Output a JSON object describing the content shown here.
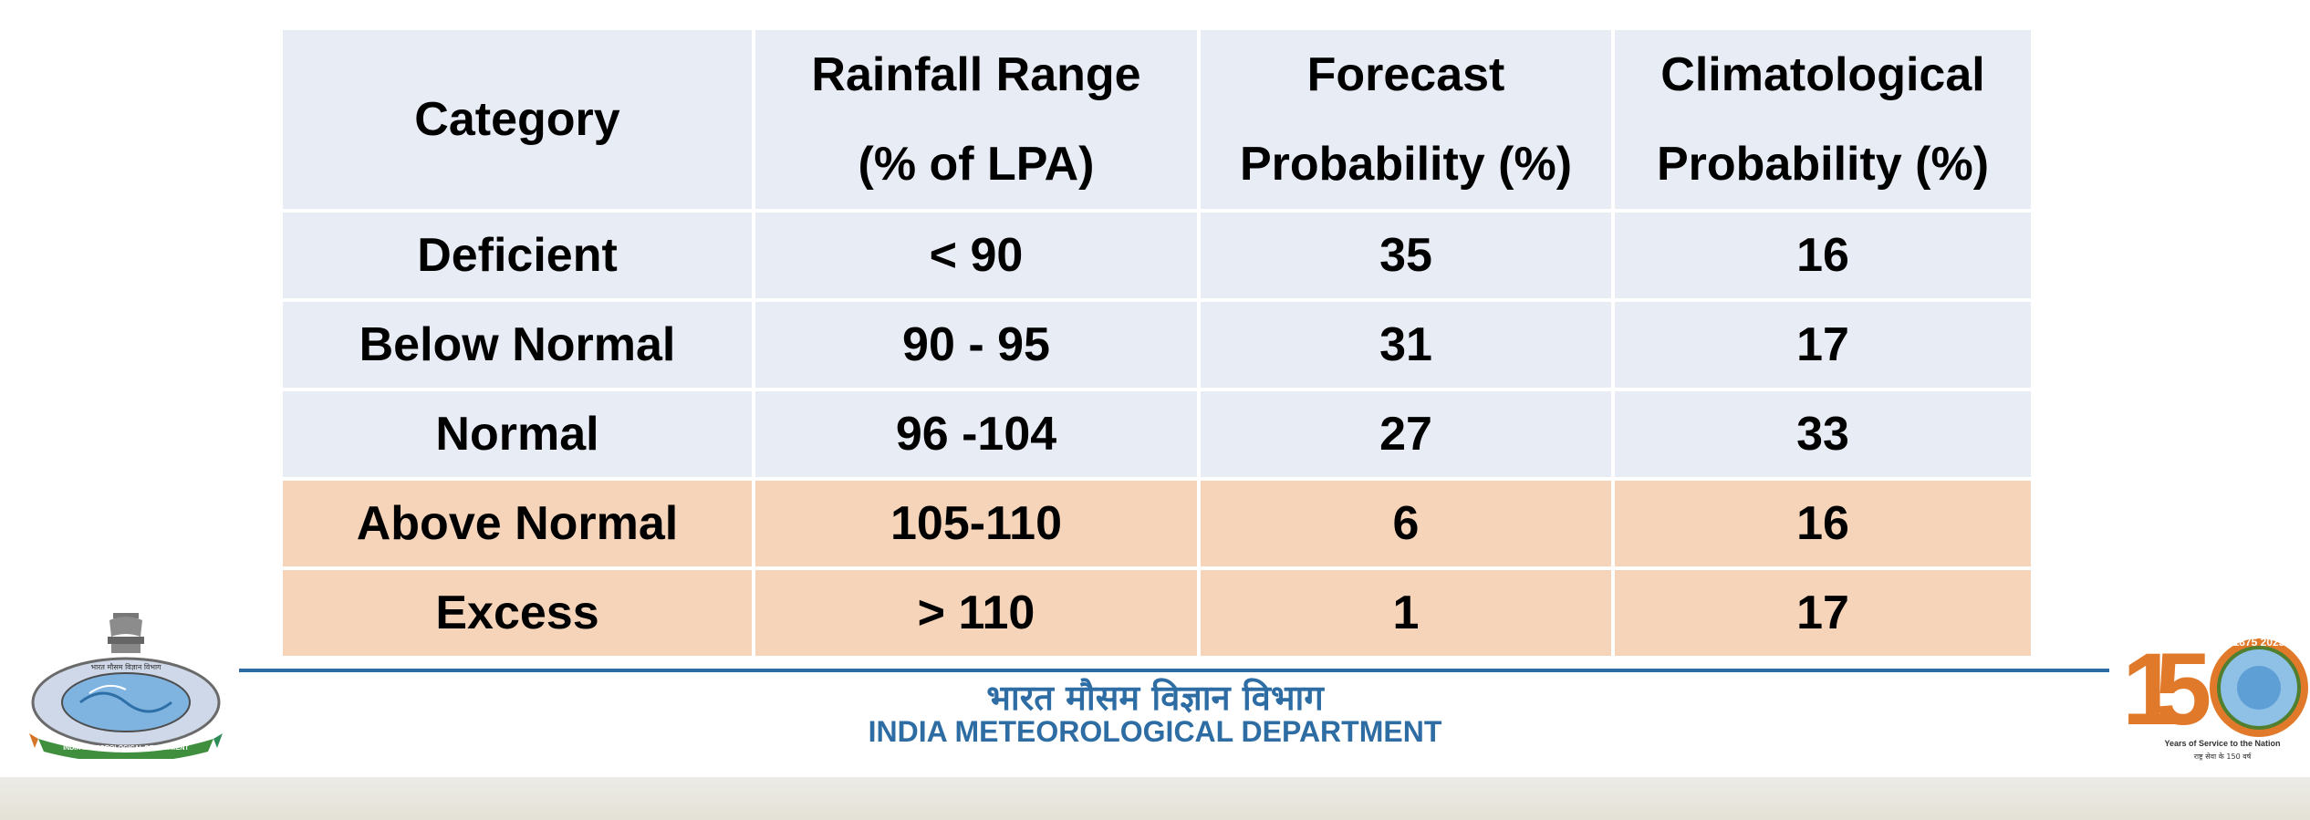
{
  "colors": {
    "band_blue": "#e8ecf5",
    "band_peach": "#f5d4b9",
    "dept_blue": "#2e6da4",
    "logo_orange": "#e0792a"
  },
  "table": {
    "headers": [
      {
        "line1": "Category",
        "line2": ""
      },
      {
        "line1": "Rainfall Range",
        "line2": "(% of LPA)"
      },
      {
        "line1": "Forecast",
        "line2": "Probability (%)"
      },
      {
        "line1": "Climatological",
        "line2": "Probability (%)"
      }
    ],
    "rows": [
      {
        "category": "Deficient",
        "range": "< 90",
        "forecast": "35",
        "climatological": "16",
        "band": "blue"
      },
      {
        "category": "Below Normal",
        "range": "90 - 95",
        "forecast": "31",
        "climatological": "17",
        "band": "blue"
      },
      {
        "category": "Normal",
        "range": "96 -104",
        "forecast": "27",
        "climatological": "33",
        "band": "blue"
      },
      {
        "category": "Above Normal",
        "range": "105-110",
        "forecast": "6",
        "climatological": "16",
        "band": "peach"
      },
      {
        "category": "Excess",
        "range": "> 110",
        "forecast": "1",
        "climatological": "17",
        "band": "peach"
      }
    ]
  },
  "footer": {
    "dept_hindi": "भारत मौसम विज्ञान विभाग",
    "dept_english": "INDIA METEOROLOGICAL DEPARTMENT"
  },
  "anniversary": {
    "number": "150",
    "years": "1875 2025",
    "tagline": "Years of Service to the Nation",
    "tagline_hindi": "राष्ट्र सेवा के 150 वर्ष"
  },
  "emblem": {
    "ring_text": "भारत मौसम विज्ञान विभाग",
    "ribbon_text": "INDIA METEOROLOGICAL DEPARTMENT"
  }
}
